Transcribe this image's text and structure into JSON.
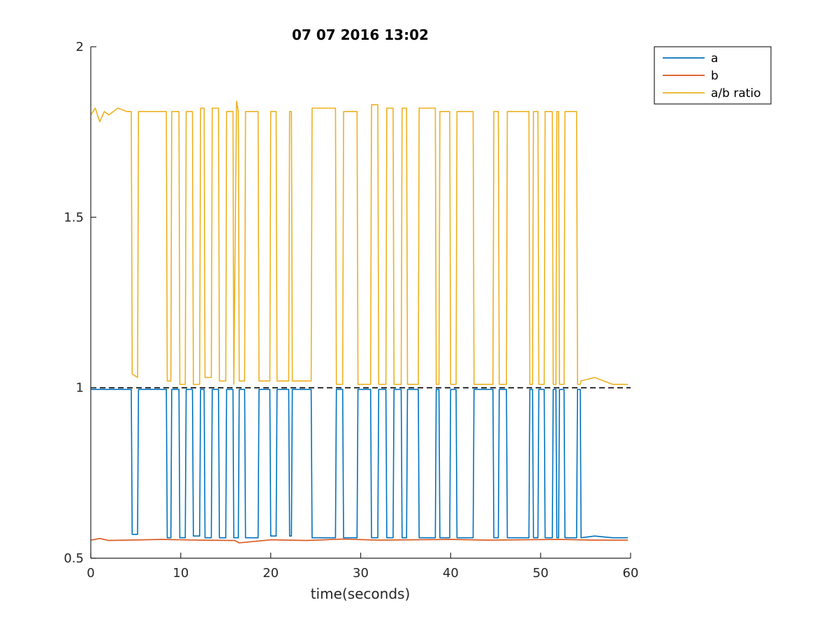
{
  "chart_data": {
    "type": "line",
    "title": "07 07 2016 13:02",
    "xlabel": "time(seconds)",
    "ylabel": "",
    "xlim": [
      0,
      60
    ],
    "ylim": [
      0.5,
      2
    ],
    "xticks": [
      0,
      10,
      20,
      30,
      40,
      50,
      60
    ],
    "xtick_labels": [
      "0",
      "10",
      "20",
      "30",
      "40",
      "50",
      "60"
    ],
    "yticks": [
      0.5,
      1,
      1.5,
      2
    ],
    "ytick_labels": [
      "0.5",
      "1",
      "1.5",
      "2"
    ],
    "grid": false,
    "legend_position": "top-right outside",
    "reference_line": {
      "y": 1,
      "style": "dashed",
      "color": "#000000"
    },
    "series": [
      {
        "name": "a",
        "color": "#0072BD",
        "x": [
          0,
          2,
          4.5,
          4.6,
          5.2,
          5.3,
          8.4,
          8.5,
          8.9,
          9.0,
          9.8,
          9.9,
          10.5,
          10.6,
          11.3,
          11.4,
          12.1,
          12.2,
          12.6,
          12.7,
          13.4,
          13.5,
          14.2,
          14.3,
          15.0,
          15.1,
          15.8,
          15.9,
          16.4,
          16.5,
          17.1,
          17.2,
          18.6,
          18.7,
          19.9,
          20.0,
          20.6,
          20.7,
          22.0,
          22.1,
          22.3,
          22.4,
          24.5,
          24.6,
          27.2,
          27.3,
          28.0,
          28.1,
          29.6,
          29.7,
          31.1,
          31.2,
          31.9,
          32.0,
          32.8,
          32.9,
          33.6,
          33.7,
          34.5,
          34.6,
          35.1,
          35.2,
          36.4,
          36.5,
          38.3,
          38.4,
          38.7,
          38.8,
          39.9,
          40.0,
          40.6,
          40.7,
          42.5,
          42.6,
          44.7,
          44.8,
          45.3,
          45.4,
          46.2,
          46.3,
          48.7,
          48.8,
          49.1,
          49.2,
          49.7,
          49.8,
          50.4,
          50.5,
          51.3,
          51.4,
          51.7,
          51.8,
          52.0,
          52.1,
          52.6,
          52.7,
          54.0,
          54.1,
          54.4,
          54.5,
          56,
          58,
          59.7
        ],
        "y": [
          0.995,
          0.995,
          0.995,
          0.57,
          0.57,
          0.995,
          0.995,
          0.56,
          0.56,
          0.995,
          0.995,
          0.56,
          0.56,
          0.995,
          0.995,
          0.565,
          0.565,
          0.995,
          0.995,
          0.56,
          0.56,
          0.995,
          0.995,
          0.56,
          0.56,
          0.995,
          0.995,
          0.56,
          0.56,
          0.995,
          0.995,
          0.56,
          0.56,
          0.995,
          0.995,
          0.565,
          0.565,
          0.995,
          0.995,
          0.565,
          0.565,
          0.995,
          0.995,
          0.56,
          0.56,
          0.995,
          0.995,
          0.56,
          0.56,
          0.995,
          0.995,
          0.56,
          0.56,
          0.995,
          0.995,
          0.56,
          0.56,
          0.995,
          0.995,
          0.56,
          0.56,
          0.995,
          0.995,
          0.56,
          0.56,
          0.995,
          0.995,
          0.56,
          0.56,
          0.995,
          0.995,
          0.56,
          0.56,
          0.995,
          0.995,
          0.56,
          0.56,
          0.995,
          0.995,
          0.56,
          0.56,
          0.995,
          0.995,
          0.56,
          0.56,
          0.995,
          0.995,
          0.56,
          0.56,
          0.995,
          0.995,
          0.56,
          0.56,
          0.995,
          0.995,
          0.56,
          0.56,
          0.995,
          0.995,
          0.56,
          0.565,
          0.56,
          0.56
        ]
      },
      {
        "name": "b",
        "color": "#D95319",
        "x": [
          0,
          1,
          2,
          4,
          8,
          12,
          16,
          16.5,
          20,
          24,
          28,
          32,
          36,
          40,
          44,
          48,
          52,
          56,
          59.7
        ],
        "y": [
          0.553,
          0.558,
          0.552,
          0.553,
          0.555,
          0.553,
          0.552,
          0.545,
          0.554,
          0.552,
          0.556,
          0.553,
          0.554,
          0.555,
          0.553,
          0.554,
          0.555,
          0.553,
          0.553
        ]
      },
      {
        "name": "a/b ratio",
        "color": "#EDB120",
        "x": [
          0,
          0.5,
          1,
          1.5,
          2,
          3,
          4,
          4.5,
          4.6,
          5.2,
          5.3,
          8.4,
          8.5,
          8.9,
          9.0,
          9.8,
          9.9,
          10.5,
          10.6,
          11.3,
          11.4,
          12.1,
          12.2,
          12.6,
          12.7,
          13.4,
          13.5,
          14.2,
          14.3,
          15.0,
          15.1,
          15.8,
          15.9,
          16.2,
          16.4,
          16.5,
          17.1,
          17.2,
          18.6,
          18.7,
          19.9,
          20.0,
          20.6,
          20.7,
          22.0,
          22.1,
          22.3,
          22.4,
          24.5,
          24.6,
          27.2,
          27.3,
          28.0,
          28.1,
          29.6,
          29.7,
          31.1,
          31.2,
          31.9,
          32.0,
          32.8,
          32.9,
          33.6,
          33.7,
          34.5,
          34.6,
          35.1,
          35.2,
          36.4,
          36.5,
          38.3,
          38.4,
          38.7,
          38.8,
          39.9,
          40.0,
          40.6,
          40.7,
          42.5,
          42.6,
          44.7,
          44.8,
          45.3,
          45.4,
          46.2,
          46.3,
          48.7,
          48.8,
          49.1,
          49.2,
          49.7,
          49.8,
          50.4,
          50.5,
          51.3,
          51.4,
          51.7,
          51.8,
          52.0,
          52.1,
          52.6,
          52.7,
          54.0,
          54.1,
          54.4,
          54.5,
          56,
          57,
          58,
          59.7
        ],
        "y": [
          1.8,
          1.82,
          1.78,
          1.81,
          1.8,
          1.82,
          1.81,
          1.81,
          1.04,
          1.03,
          1.81,
          1.81,
          1.02,
          1.02,
          1.81,
          1.81,
          1.01,
          1.01,
          1.81,
          1.81,
          1.01,
          1.01,
          1.82,
          1.82,
          1.03,
          1.03,
          1.82,
          1.82,
          1.02,
          1.02,
          1.81,
          1.81,
          1.01,
          1.84,
          1.81,
          1.02,
          1.02,
          1.81,
          1.81,
          1.02,
          1.02,
          1.81,
          1.81,
          1.02,
          1.02,
          1.81,
          1.81,
          1.02,
          1.02,
          1.82,
          1.82,
          1.01,
          1.01,
          1.81,
          1.81,
          1.01,
          1.01,
          1.83,
          1.83,
          1.01,
          1.01,
          1.82,
          1.82,
          1.01,
          1.01,
          1.82,
          1.82,
          1.01,
          1.01,
          1.82,
          1.82,
          1.01,
          1.01,
          1.81,
          1.81,
          1.01,
          1.01,
          1.81,
          1.81,
          1.01,
          1.01,
          1.81,
          1.81,
          1.01,
          1.01,
          1.81,
          1.81,
          1.01,
          1.01,
          1.81,
          1.81,
          1.01,
          1.01,
          1.81,
          1.81,
          1.01,
          1.01,
          1.81,
          1.81,
          1.01,
          1.01,
          1.81,
          1.81,
          1.01,
          1.01,
          1.02,
          1.03,
          1.02,
          1.01,
          1.01
        ]
      }
    ]
  }
}
